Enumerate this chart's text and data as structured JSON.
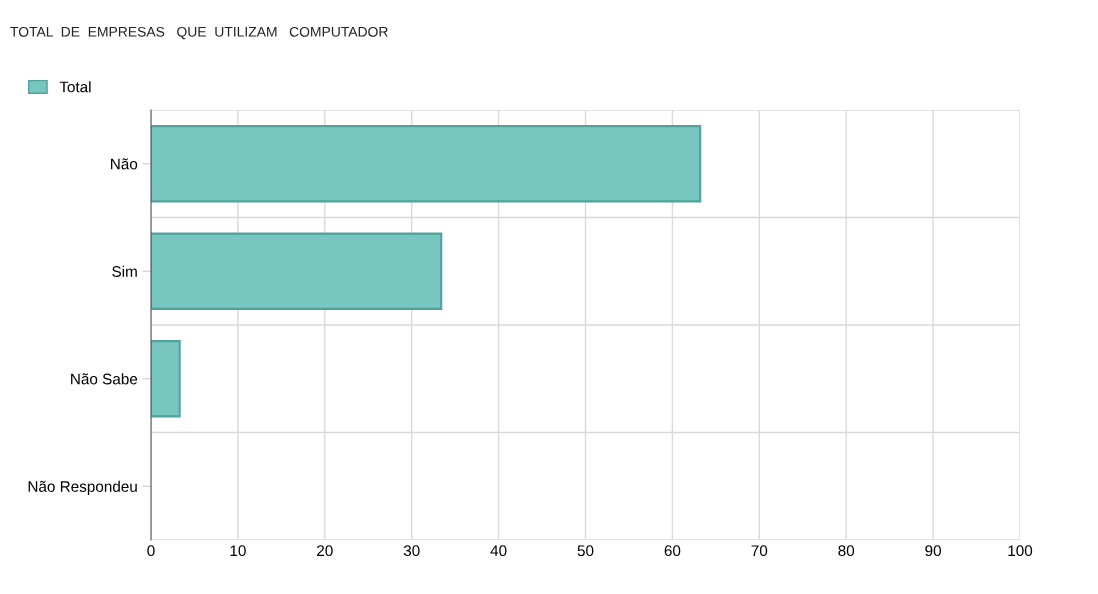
{
  "chart_data": {
    "type": "bar",
    "orientation": "horizontal",
    "title": "TOTAL  DE  EMPRESAS   QUE  UTILIZAM   COMPUTADOR",
    "categories": [
      "Não",
      "Sim",
      "Não Sabe",
      "Não Respondeu"
    ],
    "series": [
      {
        "name": "Total",
        "color": "#77c6c0",
        "values": [
          63.2,
          33.4,
          3.3,
          0
        ]
      }
    ],
    "xlim": [
      0,
      100
    ],
    "xticks": [
      0,
      10,
      20,
      30,
      40,
      50,
      60,
      70,
      80,
      90,
      100
    ],
    "grid": true,
    "legend": "top left"
  }
}
